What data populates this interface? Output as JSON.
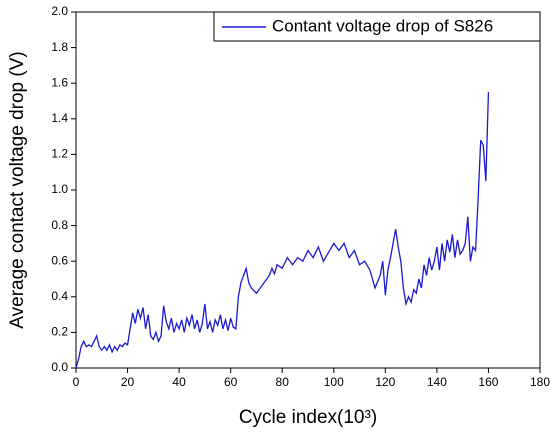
{
  "chart_data": {
    "type": "line",
    "xlabel": "Cycle index(10³)",
    "ylabel": "Average contact voltage drop (V)",
    "xlim": [
      0,
      180
    ],
    "xticks": [
      0,
      20,
      40,
      60,
      80,
      100,
      120,
      140,
      160,
      180
    ],
    "ylim": [
      0,
      2.0
    ],
    "yticks": [
      {
        "value": 0,
        "label": "0.0"
      },
      0.2,
      0.4,
      0.6,
      0.8,
      {
        "value": 1,
        "label": "1.0"
      },
      1.2,
      1.4,
      1.6,
      1.8,
      {
        "value": 2,
        "label": "2.0"
      }
    ],
    "legend": "top-right",
    "series": [
      {
        "name": "Contant voltage drop of S826",
        "color": "#1a1acc",
        "x": [
          0,
          1,
          2,
          3,
          4,
          5,
          6,
          7,
          8,
          9,
          10,
          11,
          12,
          13,
          14,
          15,
          16,
          17,
          18,
          19,
          20,
          21,
          22,
          23,
          24,
          25,
          26,
          27,
          28,
          29,
          30,
          31,
          32,
          33,
          34,
          35,
          36,
          37,
          38,
          39,
          40,
          41,
          42,
          43,
          44,
          45,
          46,
          47,
          48,
          49,
          50,
          51,
          52,
          53,
          54,
          55,
          56,
          57,
          58,
          59,
          60,
          61,
          62,
          63,
          64,
          65,
          66,
          67,
          68,
          70,
          72,
          74,
          75,
          76,
          77,
          78,
          80,
          82,
          84,
          86,
          88,
          90,
          92,
          94,
          96,
          98,
          100,
          102,
          104,
          106,
          108,
          110,
          112,
          114,
          116,
          118,
          119,
          120,
          121,
          122,
          123,
          124,
          125,
          126,
          127,
          128,
          129,
          130,
          131,
          132,
          133,
          134,
          135,
          136,
          137,
          138,
          139,
          140,
          141,
          142,
          143,
          144,
          145,
          146,
          147,
          148,
          149,
          150,
          151,
          152,
          153,
          154,
          155,
          156,
          157,
          158,
          159,
          160
        ],
        "values": [
          0,
          0.05,
          0.12,
          0.15,
          0.12,
          0.13,
          0.12,
          0.15,
          0.18,
          0.12,
          0.1,
          0.12,
          0.1,
          0.13,
          0.09,
          0.12,
          0.1,
          0.13,
          0.12,
          0.14,
          0.13,
          0.22,
          0.31,
          0.25,
          0.33,
          0.28,
          0.34,
          0.22,
          0.3,
          0.18,
          0.16,
          0.2,
          0.15,
          0.18,
          0.35,
          0.26,
          0.22,
          0.28,
          0.2,
          0.25,
          0.22,
          0.27,
          0.2,
          0.28,
          0.24,
          0.3,
          0.22,
          0.27,
          0.2,
          0.25,
          0.36,
          0.22,
          0.26,
          0.2,
          0.27,
          0.24,
          0.3,
          0.22,
          0.27,
          0.21,
          0.28,
          0.23,
          0.22,
          0.4,
          0.48,
          0.52,
          0.56,
          0.48,
          0.45,
          0.42,
          0.46,
          0.5,
          0.52,
          0.56,
          0.53,
          0.58,
          0.56,
          0.62,
          0.58,
          0.62,
          0.6,
          0.66,
          0.62,
          0.68,
          0.6,
          0.65,
          0.7,
          0.66,
          0.7,
          0.62,
          0.66,
          0.58,
          0.6,
          0.55,
          0.45,
          0.52,
          0.6,
          0.41,
          0.55,
          0.62,
          0.7,
          0.78,
          0.68,
          0.6,
          0.45,
          0.36,
          0.4,
          0.37,
          0.44,
          0.42,
          0.5,
          0.45,
          0.58,
          0.52,
          0.62,
          0.55,
          0.6,
          0.68,
          0.55,
          0.7,
          0.6,
          0.72,
          0.65,
          0.75,
          0.62,
          0.72,
          0.64,
          0.66,
          0.7,
          0.85,
          0.6,
          0.68,
          0.66,
          0.95,
          1.28,
          1.25,
          1.05,
          1.55
        ]
      }
    ]
  }
}
